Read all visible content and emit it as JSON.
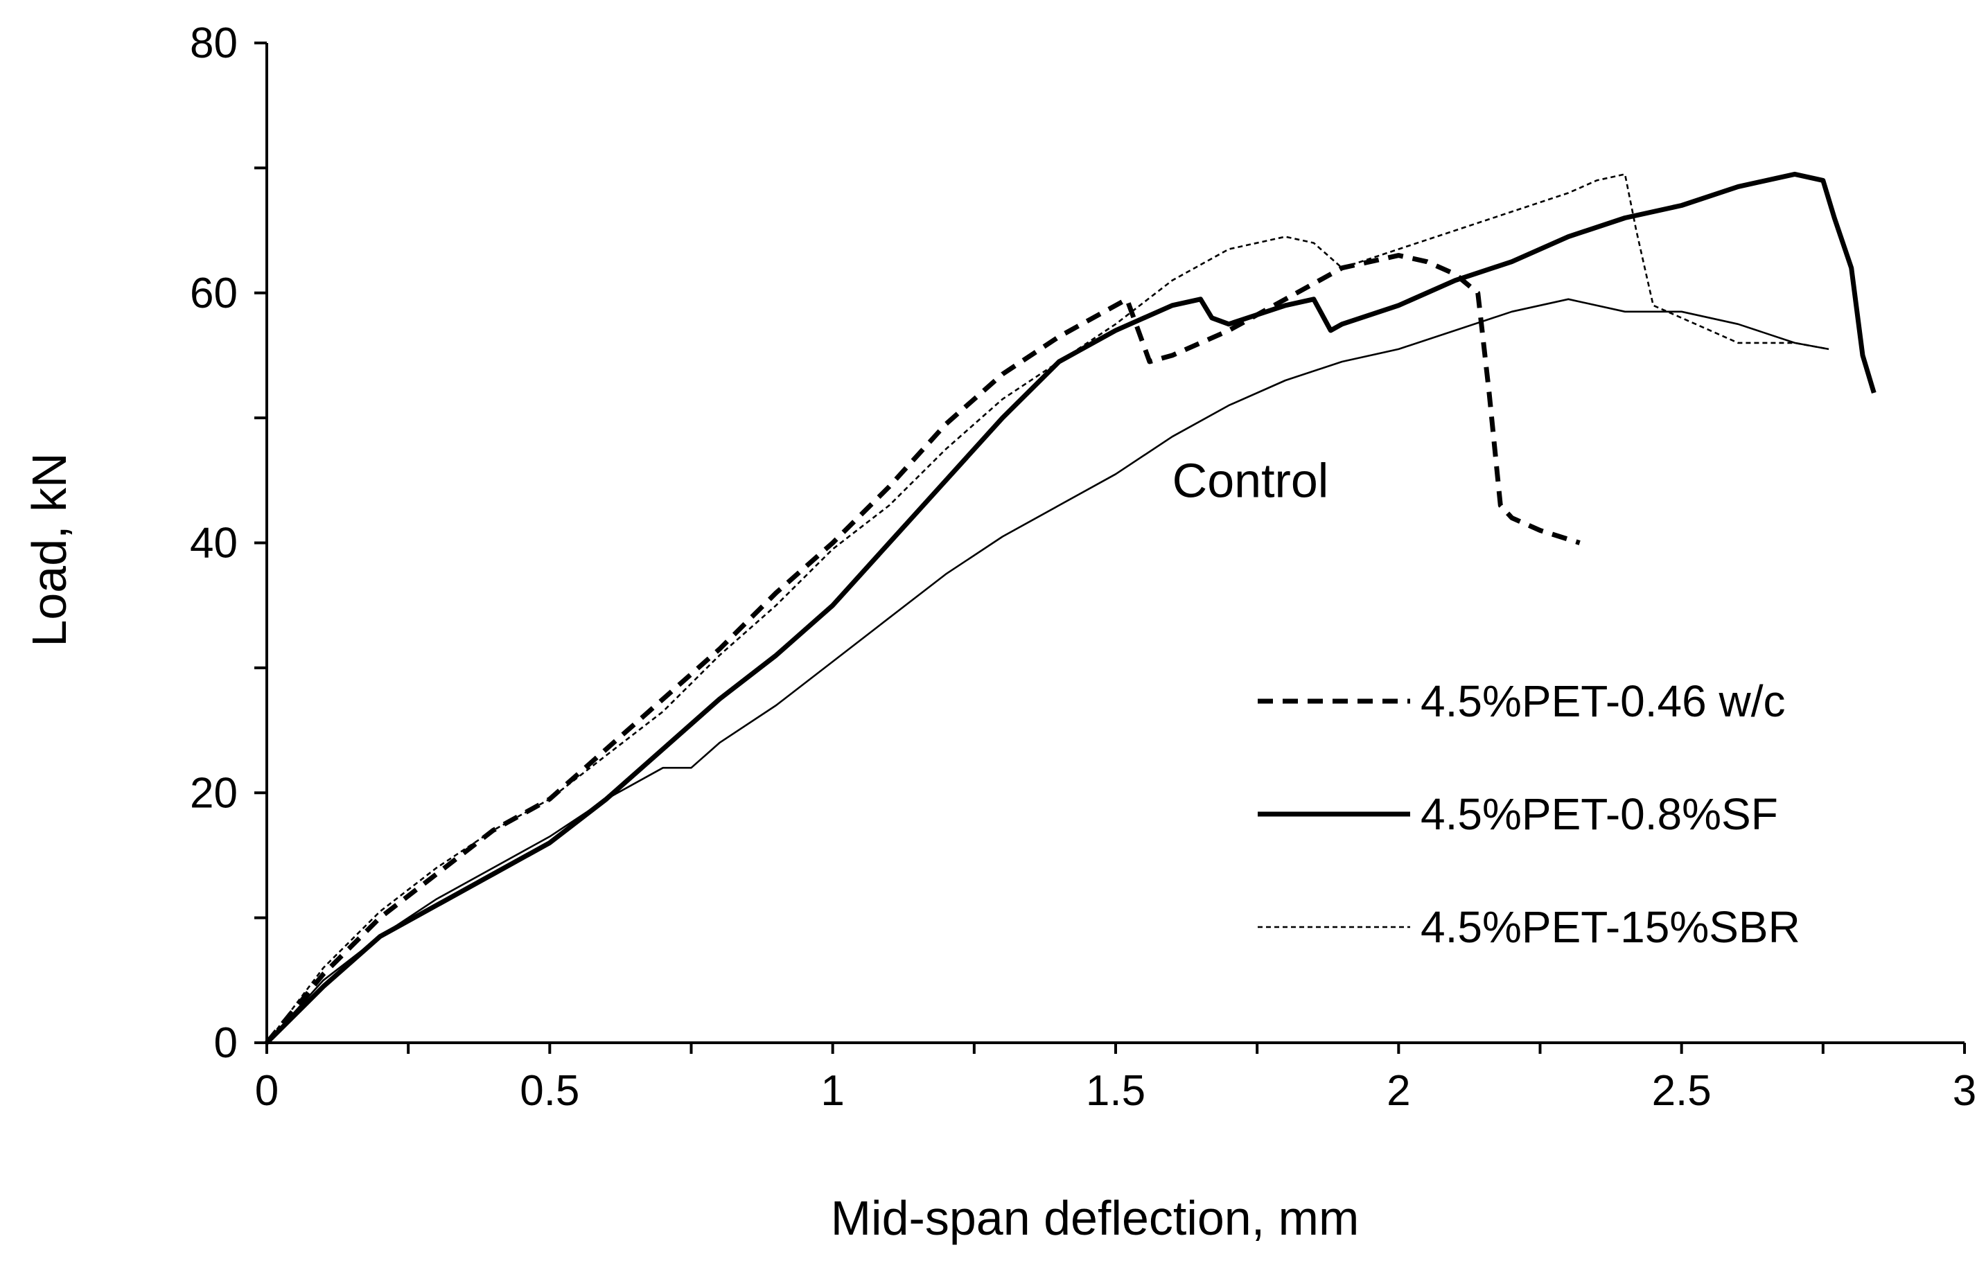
{
  "chart_data": {
    "type": "line",
    "title": "",
    "xlabel": "Mid-span deflection, mm",
    "ylabel": "Load, kN",
    "xlim": [
      0,
      3
    ],
    "ylim": [
      0,
      80
    ],
    "x_major_ticks": [
      0,
      0.5,
      1,
      1.5,
      2,
      2.5,
      3
    ],
    "x_tick_labels": [
      "0",
      "0.5",
      "1",
      "1.5",
      "2",
      "2.5",
      "3"
    ],
    "x_minor_step": 0.25,
    "y_major_ticks": [
      0,
      20,
      40,
      60,
      80
    ],
    "y_tick_labels": [
      "0",
      "20",
      "40",
      "60",
      "80"
    ],
    "y_minor_step": 10,
    "grid": false,
    "legend_position": "right",
    "annotations": [
      {
        "text": "Control",
        "x": 1.6,
        "y": 45,
        "series": "Control"
      }
    ],
    "series": [
      {
        "name": "4.5%PET-0.46 w/c",
        "in_legend": true,
        "style": "dashed",
        "weight": "heavy",
        "color": "#000000",
        "x": [
          0,
          0.1,
          0.2,
          0.3,
          0.4,
          0.5,
          0.6,
          0.7,
          0.8,
          0.9,
          1.0,
          1.1,
          1.2,
          1.3,
          1.4,
          1.5,
          1.52,
          1.56,
          1.6,
          1.7,
          1.8,
          1.9,
          2.0,
          2.05,
          2.1,
          2.14,
          2.145,
          2.16,
          2.18,
          2.2,
          2.25,
          2.32
        ],
        "y": [
          0,
          5.5,
          10,
          13.5,
          17,
          19.5,
          23.5,
          27.5,
          31.5,
          36,
          40,
          44.5,
          49.5,
          53.5,
          56.5,
          59,
          59.5,
          54.5,
          55,
          57,
          59.5,
          62,
          63,
          62.5,
          61.5,
          60,
          58,
          52,
          43,
          42,
          41,
          40
        ]
      },
      {
        "name": "4.5%PET-0.8%SF",
        "in_legend": true,
        "style": "solid",
        "weight": "heavy",
        "color": "#000000",
        "x": [
          0,
          0.1,
          0.2,
          0.3,
          0.4,
          0.5,
          0.6,
          0.7,
          0.8,
          0.9,
          1.0,
          1.1,
          1.2,
          1.3,
          1.4,
          1.5,
          1.6,
          1.65,
          1.67,
          1.7,
          1.8,
          1.85,
          1.88,
          1.9,
          2.0,
          2.1,
          2.2,
          2.3,
          2.4,
          2.5,
          2.6,
          2.7,
          2.75,
          2.77,
          2.8,
          2.82,
          2.84
        ],
        "y": [
          0,
          4.5,
          8.5,
          11,
          13.5,
          16,
          19.5,
          23.5,
          27.5,
          31,
          35,
          40,
          45,
          50,
          54.5,
          57,
          59,
          59.5,
          58,
          57.5,
          59,
          59.5,
          57,
          57.5,
          59,
          61,
          62.5,
          64.5,
          66,
          67,
          68.5,
          69.5,
          69,
          66,
          62,
          55,
          52
        ]
      },
      {
        "name": "4.5%PET-15%SBR",
        "in_legend": true,
        "style": "dotted",
        "weight": "light",
        "color": "#000000",
        "x": [
          0,
          0.1,
          0.2,
          0.3,
          0.4,
          0.5,
          0.6,
          0.7,
          0.8,
          0.9,
          1.0,
          1.1,
          1.2,
          1.3,
          1.4,
          1.5,
          1.6,
          1.7,
          1.8,
          1.85,
          1.9,
          2.0,
          2.1,
          2.2,
          2.3,
          2.35,
          2.4,
          2.42,
          2.45,
          2.5,
          2.6,
          2.7,
          2.76
        ],
        "y": [
          0,
          6,
          10.5,
          14,
          17,
          19.5,
          23,
          26.5,
          31,
          35,
          39.5,
          43,
          47.5,
          51.5,
          54.5,
          57.5,
          61,
          63.5,
          64.5,
          64,
          62,
          63.5,
          65,
          66.5,
          68,
          69,
          69.5,
          65,
          59,
          58,
          56,
          56,
          55.5
        ]
      },
      {
        "name": "Control",
        "in_legend": false,
        "style": "solid",
        "weight": "light",
        "color": "#000000",
        "x": [
          0,
          0.1,
          0.2,
          0.3,
          0.4,
          0.5,
          0.6,
          0.7,
          0.75,
          0.8,
          0.9,
          1.0,
          1.1,
          1.2,
          1.3,
          1.4,
          1.5,
          1.6,
          1.7,
          1.8,
          1.9,
          2.0,
          2.1,
          2.2,
          2.3,
          2.4,
          2.5,
          2.6,
          2.7,
          2.76
        ],
        "y": [
          0,
          5,
          8.5,
          11.5,
          14,
          16.5,
          19.5,
          22,
          22,
          24,
          27,
          30.5,
          34,
          37.5,
          40.5,
          43,
          45.5,
          48.5,
          51,
          53,
          54.5,
          55.5,
          57,
          58.5,
          59.5,
          58.5,
          58.5,
          57.5,
          56,
          55.5
        ]
      }
    ]
  }
}
